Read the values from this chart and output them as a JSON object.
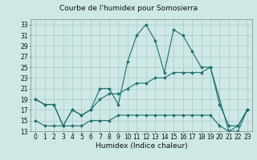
{
  "title": "Courbe de l'humidex pour Somosierra",
  "xlabel": "Humidex (Indice chaleur)",
  "bg_color": "#cde8e5",
  "grid_color": "#b0d0cd",
  "line_color": "#1e7070",
  "series": {
    "s1_x": [
      0,
      1,
      2,
      3,
      4,
      5,
      6,
      7,
      8,
      9,
      10,
      11,
      12,
      13,
      14,
      15,
      16,
      17,
      18,
      19,
      21,
      22,
      23
    ],
    "s1_y": [
      19,
      18,
      18,
      14,
      17,
      16,
      17,
      21,
      21,
      18,
      26,
      31,
      33,
      30,
      24,
      32,
      31,
      28,
      25,
      25,
      13,
      13,
      17
    ],
    "s2_x": [
      0,
      1,
      2,
      3,
      4,
      5,
      6,
      7,
      8,
      9,
      10,
      11,
      12,
      13,
      14,
      15,
      16,
      17,
      18,
      19,
      20,
      21,
      22,
      23
    ],
    "s2_y": [
      19,
      18,
      18,
      14,
      17,
      16,
      17,
      19,
      20,
      20,
      21,
      22,
      22,
      23,
      23,
      24,
      24,
      24,
      24,
      25,
      18,
      14,
      14,
      17
    ],
    "s3_x": [
      0,
      1,
      2,
      3,
      4,
      5,
      6,
      7,
      8,
      9,
      10,
      11,
      12,
      13,
      14,
      15,
      16,
      17,
      18,
      19,
      20,
      21,
      22,
      23
    ],
    "s3_y": [
      15,
      14,
      14,
      14,
      14,
      14,
      15,
      15,
      15,
      16,
      16,
      16,
      16,
      16,
      16,
      16,
      16,
      16,
      16,
      16,
      14,
      13,
      14,
      17
    ]
  },
  "ylim": [
    13,
    34
  ],
  "yticks": [
    13,
    15,
    17,
    19,
    21,
    23,
    25,
    27,
    29,
    31,
    33
  ],
  "xlim": [
    -0.5,
    23.5
  ],
  "title_fontsize": 6.5,
  "label_fontsize": 6.5,
  "tick_fontsize": 5.5
}
